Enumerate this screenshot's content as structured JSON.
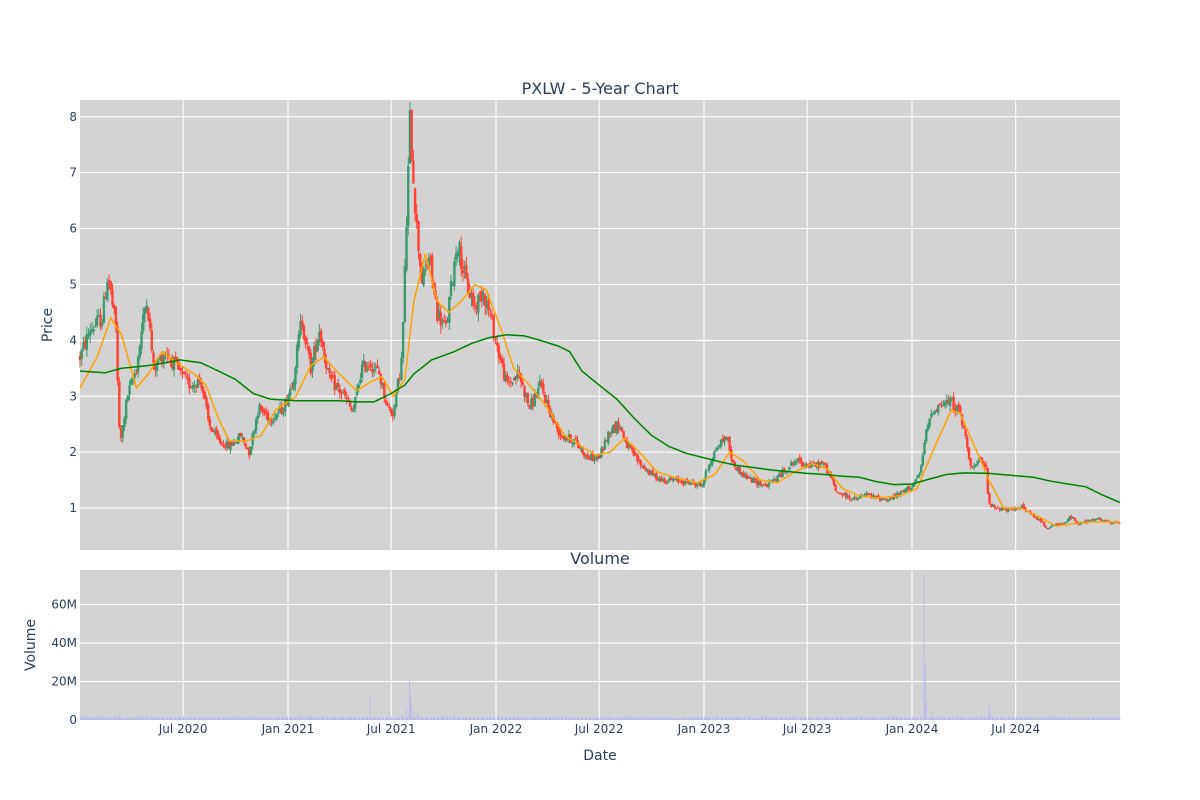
{
  "chart_data": [
    {
      "type": "candlestick",
      "title": "PXLW - 5-Year Chart",
      "ylabel": "Price",
      "xlabel": "",
      "ylim": [
        0.25,
        8.3
      ],
      "x_range": [
        "2020-01-02",
        "2024-12-31"
      ],
      "yticks": [
        "1",
        "2",
        "3",
        "4",
        "5",
        "6",
        "7",
        "8"
      ],
      "background": "#d3d3d3",
      "grid": true,
      "colors": {
        "increasing": "#3d9970",
        "decreasing": "#ff4136",
        "ma_short": "#ffa500",
        "ma_long": "#008000"
      },
      "price_path": [
        [
          "2020-01-02",
          3.7
        ],
        [
          "2020-01-20",
          4.2
        ],
        [
          "2020-02-10",
          4.4
        ],
        [
          "2020-02-20",
          5.2
        ],
        [
          "2020-03-05",
          4.2
        ],
        [
          "2020-03-12",
          2.1
        ],
        [
          "2020-03-25",
          3.0
        ],
        [
          "2020-04-10",
          3.5
        ],
        [
          "2020-04-28",
          4.8
        ],
        [
          "2020-05-10",
          3.5
        ],
        [
          "2020-06-01",
          3.8
        ],
        [
          "2020-06-20",
          3.5
        ],
        [
          "2020-07-10",
          3.2
        ],
        [
          "2020-08-01",
          3.3
        ],
        [
          "2020-08-15",
          2.5
        ],
        [
          "2020-09-01",
          2.2
        ],
        [
          "2020-09-20",
          2.1
        ],
        [
          "2020-10-10",
          2.3
        ],
        [
          "2020-10-25",
          2.0
        ],
        [
          "2020-11-10",
          2.8
        ],
        [
          "2020-12-01",
          2.6
        ],
        [
          "2020-12-25",
          2.8
        ],
        [
          "2021-01-10",
          3.3
        ],
        [
          "2021-01-25",
          4.4
        ],
        [
          "2021-02-10",
          3.5
        ],
        [
          "2021-02-25",
          4.2
        ],
        [
          "2021-03-15",
          3.3
        ],
        [
          "2021-04-10",
          3.0
        ],
        [
          "2021-04-25",
          2.7
        ],
        [
          "2021-05-10",
          3.5
        ],
        [
          "2021-05-25",
          3.6
        ],
        [
          "2021-06-10",
          3.4
        ],
        [
          "2021-06-25",
          2.8
        ],
        [
          "2021-07-05",
          2.7
        ],
        [
          "2021-07-20",
          3.7
        ],
        [
          "2021-08-03",
          7.9
        ],
        [
          "2021-08-15",
          6.0
        ],
        [
          "2021-08-25",
          5.0
        ],
        [
          "2021-09-05",
          5.5
        ],
        [
          "2021-09-20",
          4.5
        ],
        [
          "2021-10-05",
          4.2
        ],
        [
          "2021-10-25",
          5.8
        ],
        [
          "2021-11-10",
          5.0
        ],
        [
          "2021-11-25",
          4.6
        ],
        [
          "2021-12-10",
          4.9
        ],
        [
          "2021-12-25",
          4.3
        ],
        [
          "2022-01-05",
          3.8
        ],
        [
          "2022-01-20",
          3.2
        ],
        [
          "2022-02-10",
          3.4
        ],
        [
          "2022-03-01",
          2.8
        ],
        [
          "2022-03-20",
          3.2
        ],
        [
          "2022-04-10",
          2.6
        ],
        [
          "2022-04-25",
          2.3
        ],
        [
          "2022-05-20",
          2.2
        ],
        [
          "2022-06-10",
          1.9
        ],
        [
          "2022-07-01",
          1.9
        ],
        [
          "2022-07-20",
          2.4
        ],
        [
          "2022-08-05",
          2.5
        ],
        [
          "2022-08-20",
          2.1
        ],
        [
          "2022-09-10",
          1.8
        ],
        [
          "2022-10-01",
          1.6
        ],
        [
          "2022-10-20",
          1.5
        ],
        [
          "2022-11-10",
          1.5
        ],
        [
          "2022-12-10",
          1.45
        ],
        [
          "2022-12-28",
          1.4
        ],
        [
          "2023-01-10",
          1.8
        ],
        [
          "2023-01-25",
          2.1
        ],
        [
          "2023-02-10",
          2.3
        ],
        [
          "2023-02-20",
          1.8
        ],
        [
          "2023-03-10",
          1.6
        ],
        [
          "2023-03-25",
          1.5
        ],
        [
          "2023-04-20",
          1.4
        ],
        [
          "2023-05-10",
          1.55
        ],
        [
          "2023-05-25",
          1.7
        ],
        [
          "2023-06-10",
          1.85
        ],
        [
          "2023-06-25",
          1.8
        ],
        [
          "2023-07-10",
          1.75
        ],
        [
          "2023-07-28",
          1.8
        ],
        [
          "2023-08-10",
          1.6
        ],
        [
          "2023-08-20",
          1.3
        ],
        [
          "2023-09-10",
          1.2
        ],
        [
          "2023-09-25",
          1.15
        ],
        [
          "2023-10-10",
          1.25
        ],
        [
          "2023-10-25",
          1.2
        ],
        [
          "2023-11-20",
          1.15
        ],
        [
          "2023-12-10",
          1.25
        ],
        [
          "2024-01-01",
          1.4
        ],
        [
          "2024-01-15",
          1.6
        ],
        [
          "2024-01-25",
          2.3
        ],
        [
          "2024-02-05",
          2.75
        ],
        [
          "2024-02-20",
          2.85
        ],
        [
          "2024-03-10",
          2.9
        ],
        [
          "2024-03-25",
          2.7
        ],
        [
          "2024-04-05",
          2.2
        ],
        [
          "2024-04-15",
          1.7
        ],
        [
          "2024-04-30",
          1.85
        ],
        [
          "2024-05-10",
          1.7
        ],
        [
          "2024-05-15",
          1.05
        ],
        [
          "2024-06-01",
          1.0
        ],
        [
          "2024-06-25",
          0.95
        ],
        [
          "2024-07-10",
          1.05
        ],
        [
          "2024-07-25",
          0.9
        ],
        [
          "2024-08-10",
          0.8
        ],
        [
          "2024-08-25",
          0.65
        ],
        [
          "2024-09-10",
          0.7
        ],
        [
          "2024-09-25",
          0.72
        ],
        [
          "2024-10-05",
          0.85
        ],
        [
          "2024-10-20",
          0.72
        ],
        [
          "2024-11-10",
          0.78
        ],
        [
          "2024-11-25",
          0.8
        ],
        [
          "2024-12-15",
          0.72
        ],
        [
          "2024-12-31",
          0.75
        ]
      ],
      "series": [
        {
          "points": [
            [
              "2020-01-02",
              3.15
            ],
            [
              "2020-02-01",
              3.7
            ],
            [
              "2020-02-25",
              4.4
            ],
            [
              "2020-03-15",
              4.1
            ],
            [
              "2020-04-10",
              3.15
            ],
            [
              "2020-05-01",
              3.4
            ],
            [
              "2020-05-25",
              3.8
            ],
            [
              "2020-06-20",
              3.6
            ],
            [
              "2020-07-20",
              3.4
            ],
            [
              "2020-08-10",
              3.2
            ],
            [
              "2020-09-01",
              2.6
            ],
            [
              "2020-09-20",
              2.2
            ],
            [
              "2020-10-20",
              2.2
            ],
            [
              "2020-11-15",
              2.3
            ],
            [
              "2020-12-10",
              2.75
            ],
            [
              "2021-01-15",
              3.0
            ],
            [
              "2021-02-10",
              3.55
            ],
            [
              "2021-03-05",
              3.7
            ],
            [
              "2021-04-01",
              3.4
            ],
            [
              "2021-05-01",
              3.1
            ],
            [
              "2021-05-25",
              3.25
            ],
            [
              "2021-06-15",
              3.35
            ],
            [
              "2021-07-05",
              3.0
            ],
            [
              "2021-07-25",
              3.3
            ],
            [
              "2021-08-10",
              4.7
            ],
            [
              "2021-08-30",
              5.55
            ],
            [
              "2021-09-20",
              4.7
            ],
            [
              "2021-10-10",
              4.5
            ],
            [
              "2021-11-01",
              4.7
            ],
            [
              "2021-11-25",
              5.0
            ],
            [
              "2021-12-15",
              4.9
            ],
            [
              "2022-01-10",
              4.2
            ],
            [
              "2022-02-01",
              3.5
            ],
            [
              "2022-03-01",
              3.2
            ],
            [
              "2022-04-01",
              2.8
            ],
            [
              "2022-05-01",
              2.3
            ],
            [
              "2022-06-01",
              2.1
            ],
            [
              "2022-06-25",
              1.95
            ],
            [
              "2022-07-20",
              2.0
            ],
            [
              "2022-08-15",
              2.25
            ],
            [
              "2022-09-10",
              2.0
            ],
            [
              "2022-10-10",
              1.65
            ],
            [
              "2022-11-10",
              1.55
            ],
            [
              "2022-12-20",
              1.45
            ],
            [
              "2023-01-20",
              1.6
            ],
            [
              "2023-02-15",
              2.0
            ],
            [
              "2023-03-10",
              1.85
            ],
            [
              "2023-04-10",
              1.5
            ],
            [
              "2023-05-10",
              1.45
            ],
            [
              "2023-06-10",
              1.65
            ],
            [
              "2023-07-10",
              1.8
            ],
            [
              "2023-08-05",
              1.7
            ],
            [
              "2023-09-01",
              1.35
            ],
            [
              "2023-10-01",
              1.22
            ],
            [
              "2023-11-01",
              1.18
            ],
            [
              "2023-12-10",
              1.22
            ],
            [
              "2024-01-10",
              1.35
            ],
            [
              "2024-02-10",
              2.1
            ],
            [
              "2024-03-10",
              2.75
            ],
            [
              "2024-03-25",
              2.7
            ],
            [
              "2024-04-20",
              2.1
            ],
            [
              "2024-05-15",
              1.5
            ],
            [
              "2024-06-10",
              1.0
            ],
            [
              "2024-07-10",
              1.0
            ],
            [
              "2024-08-10",
              0.85
            ],
            [
              "2024-09-10",
              0.68
            ],
            [
              "2024-10-10",
              0.72
            ],
            [
              "2024-11-10",
              0.75
            ],
            [
              "2024-12-31",
              0.75
            ]
          ]
        },
        {
          "points": [
            [
              "2020-01-02",
              3.45
            ],
            [
              "2020-02-15",
              3.42
            ],
            [
              "2020-03-15",
              3.5
            ],
            [
              "2020-05-01",
              3.55
            ],
            [
              "2020-06-01",
              3.6
            ],
            [
              "2020-06-25",
              3.65
            ],
            [
              "2020-08-01",
              3.6
            ],
            [
              "2020-09-01",
              3.45
            ],
            [
              "2020-10-01",
              3.3
            ],
            [
              "2020-11-01",
              3.05
            ],
            [
              "2020-12-01",
              2.95
            ],
            [
              "2021-01-15",
              2.92
            ],
            [
              "2021-02-15",
              2.92
            ],
            [
              "2021-04-01",
              2.92
            ],
            [
              "2021-05-01",
              2.9
            ],
            [
              "2021-06-01",
              2.9
            ],
            [
              "2021-07-01",
              3.05
            ],
            [
              "2021-07-25",
              3.2
            ],
            [
              "2021-08-10",
              3.4
            ],
            [
              "2021-09-10",
              3.65
            ],
            [
              "2021-10-20",
              3.8
            ],
            [
              "2021-11-20",
              3.95
            ],
            [
              "2021-12-20",
              4.05
            ],
            [
              "2022-01-20",
              4.1
            ],
            [
              "2022-02-20",
              4.08
            ],
            [
              "2022-03-20",
              4.0
            ],
            [
              "2022-04-20",
              3.9
            ],
            [
              "2022-05-10",
              3.8
            ],
            [
              "2022-06-01",
              3.45
            ],
            [
              "2022-07-01",
              3.2
            ],
            [
              "2022-08-01",
              2.95
            ],
            [
              "2022-09-01",
              2.6
            ],
            [
              "2022-10-01",
              2.3
            ],
            [
              "2022-11-01",
              2.1
            ],
            [
              "2022-12-01",
              1.98
            ],
            [
              "2023-01-01",
              1.9
            ],
            [
              "2023-02-01",
              1.82
            ],
            [
              "2023-03-01",
              1.76
            ],
            [
              "2023-04-01",
              1.72
            ],
            [
              "2023-05-01",
              1.68
            ],
            [
              "2023-06-01",
              1.65
            ],
            [
              "2023-07-01",
              1.62
            ],
            [
              "2023-08-01",
              1.6
            ],
            [
              "2023-09-01",
              1.57
            ],
            [
              "2023-10-01",
              1.55
            ],
            [
              "2023-11-01",
              1.47
            ],
            [
              "2023-12-01",
              1.42
            ],
            [
              "2024-01-01",
              1.43
            ],
            [
              "2024-02-01",
              1.52
            ],
            [
              "2024-03-01",
              1.6
            ],
            [
              "2024-04-01",
              1.63
            ],
            [
              "2024-05-15",
              1.62
            ],
            [
              "2024-07-01",
              1.58
            ],
            [
              "2024-08-01",
              1.55
            ],
            [
              "2024-09-01",
              1.48
            ],
            [
              "2024-10-01",
              1.43
            ],
            [
              "2024-11-01",
              1.38
            ],
            [
              "2024-12-01",
              1.23
            ],
            [
              "2024-12-31",
              1.1
            ]
          ]
        }
      ]
    },
    {
      "type": "bar",
      "title": "Volume",
      "ylabel": "Volume",
      "xlabel": "Date",
      "ylim": [
        0,
        78000000
      ],
      "yticks": [
        {
          "value": 0,
          "label": "0"
        },
        {
          "value": 20000000,
          "label": "20M"
        },
        {
          "value": 40000000,
          "label": "40M"
        },
        {
          "value": 60000000,
          "label": "60M"
        }
      ],
      "xticks": [
        {
          "date": "2020-07-01",
          "label": "Jul 2020"
        },
        {
          "date": "2021-01-01",
          "label": "Jan 2021"
        },
        {
          "date": "2021-07-01",
          "label": "Jul 2021"
        },
        {
          "date": "2022-01-01",
          "label": "Jan 2022"
        },
        {
          "date": "2022-07-01",
          "label": "Jul 2022"
        },
        {
          "date": "2023-01-01",
          "label": "Jan 2023"
        },
        {
          "date": "2023-07-01",
          "label": "Jul 2023"
        },
        {
          "date": "2024-01-01",
          "label": "Jan 2024"
        },
        {
          "date": "2024-07-01",
          "label": "Jul 2024"
        }
      ],
      "background": "#d3d3d3",
      "bar_color": "#b8b8f0",
      "baseline_volume": 1200000,
      "spikes": [
        [
          "2020-03-12",
          3000000
        ],
        [
          "2020-04-28",
          2500000
        ],
        [
          "2021-01-25",
          2500000
        ],
        [
          "2021-05-25",
          12000000
        ],
        [
          "2021-06-28",
          4000000
        ],
        [
          "2021-07-20",
          3000000
        ],
        [
          "2021-07-28",
          6000000
        ],
        [
          "2021-08-02",
          21000000
        ],
        [
          "2021-08-04",
          14000000
        ],
        [
          "2021-08-06",
          9000000
        ],
        [
          "2021-08-10",
          5000000
        ],
        [
          "2021-08-16",
          4000000
        ],
        [
          "2021-10-20",
          2500000
        ],
        [
          "2022-01-05",
          2000000
        ],
        [
          "2023-01-25",
          2000000
        ],
        [
          "2024-01-22",
          76000000
        ],
        [
          "2024-01-24",
          30000000
        ],
        [
          "2024-01-26",
          10000000
        ],
        [
          "2024-02-05",
          5000000
        ],
        [
          "2024-05-15",
          9000000
        ],
        [
          "2024-05-17",
          4000000
        ],
        [
          "2024-10-05",
          2000000
        ]
      ]
    }
  ]
}
